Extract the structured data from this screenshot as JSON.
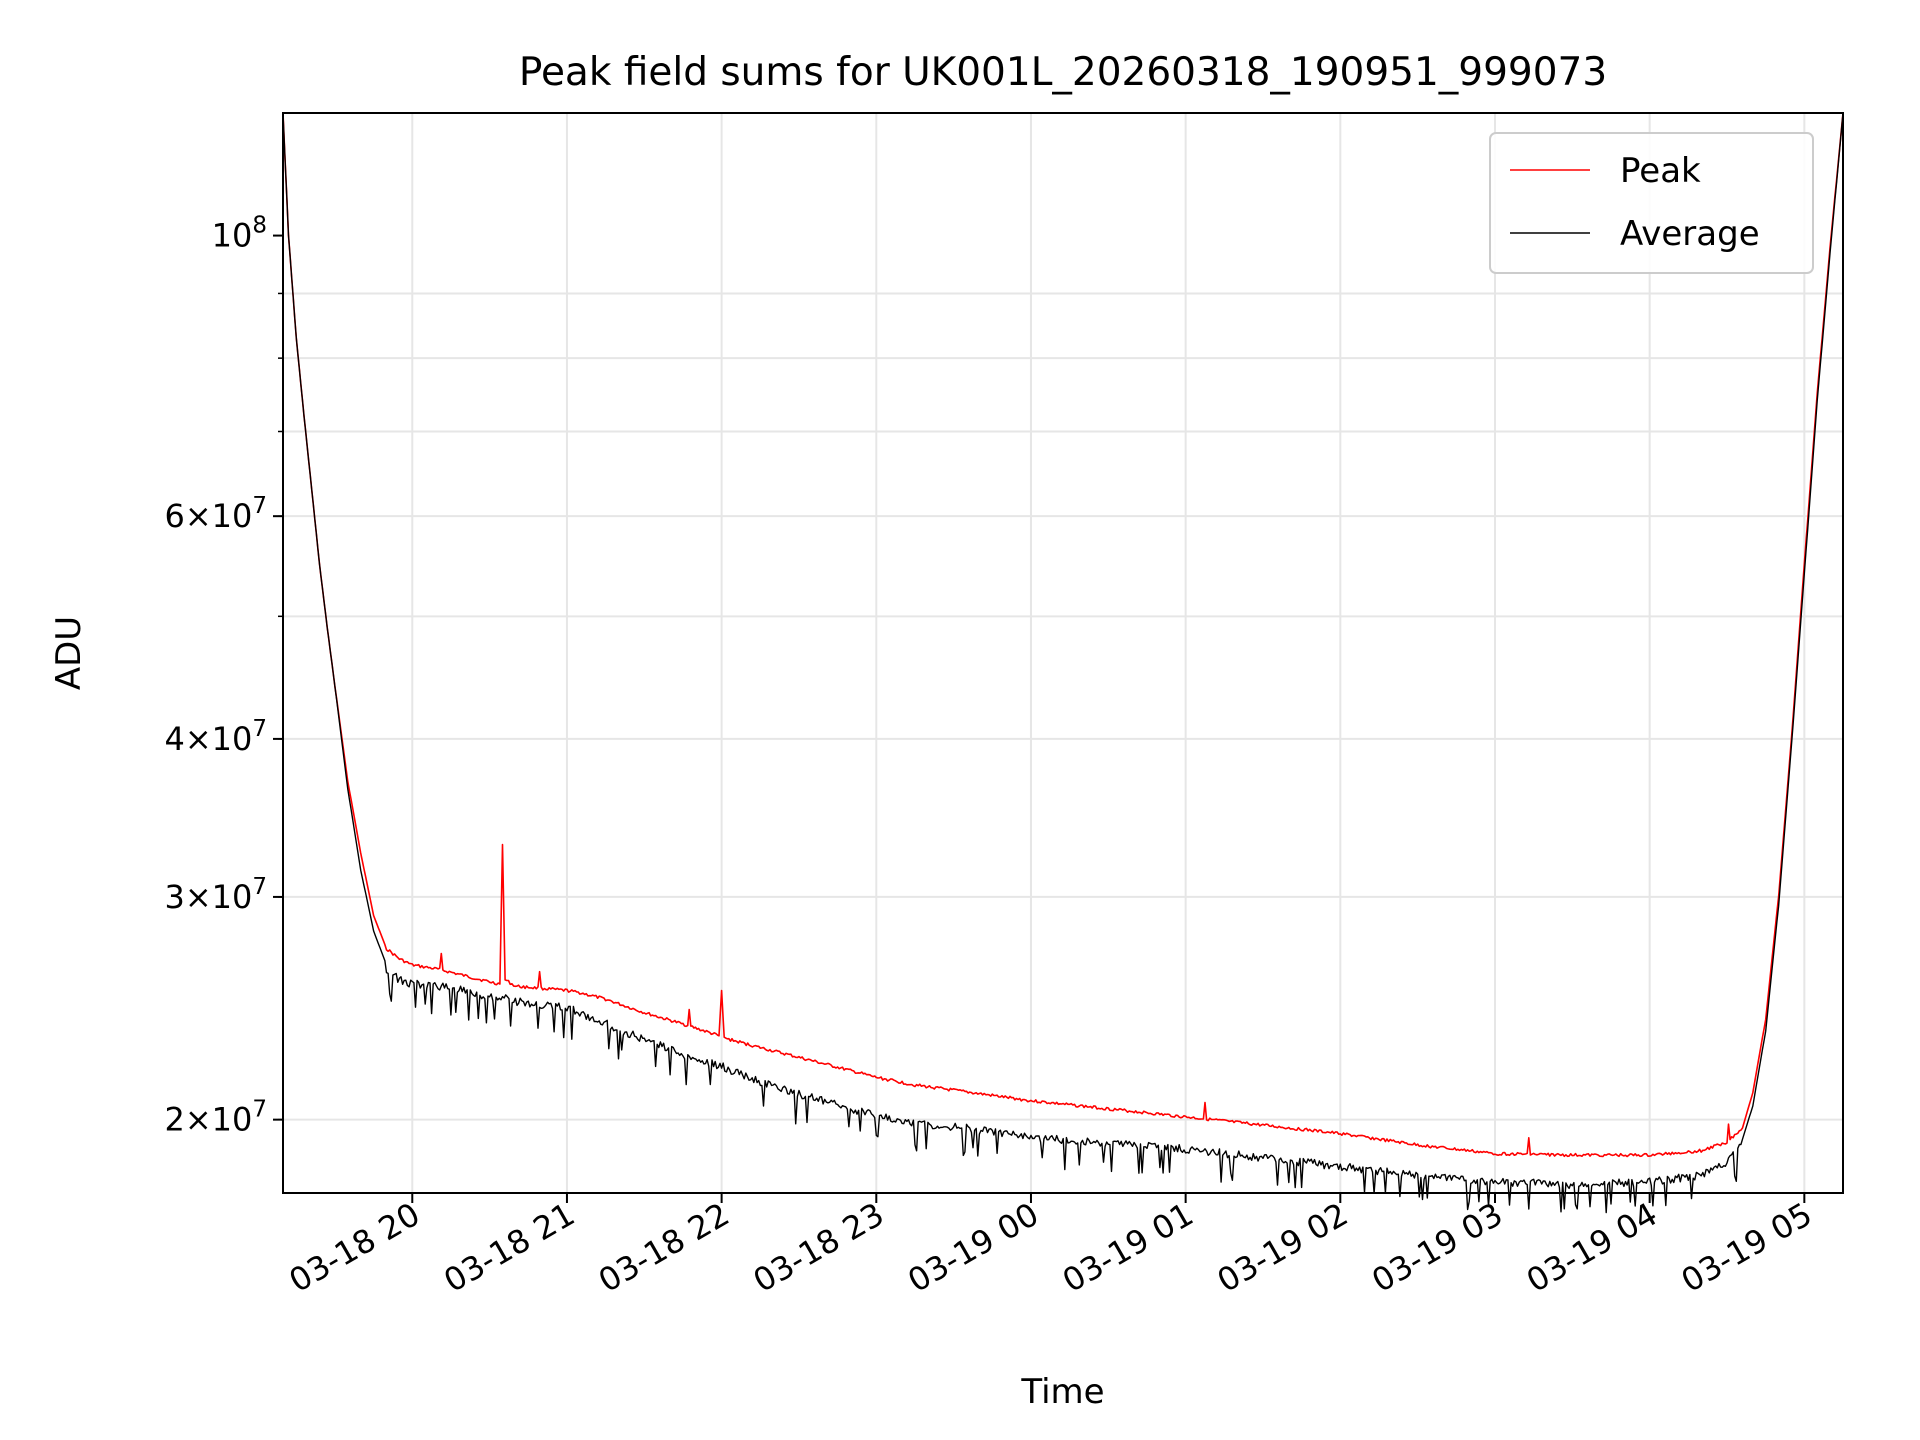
{
  "chart_data": {
    "type": "line",
    "title": "Peak field sums for UK001L_20260318_190951_999073",
    "xlabel": "Time",
    "ylabel": "ADU",
    "yscale": "log",
    "xlim": [
      "2026-03-18 19:09:51",
      "2026-03-19 05:15:00"
    ],
    "ylim": [
      17500000,
      125000000
    ],
    "grid": true,
    "legend_position": "top-right",
    "x_ticks": [
      {
        "value": "2026-03-18 20:00",
        "label": "03-18 20"
      },
      {
        "value": "2026-03-18 21:00",
        "label": "03-18 21"
      },
      {
        "value": "2026-03-18 22:00",
        "label": "03-18 22"
      },
      {
        "value": "2026-03-18 23:00",
        "label": "03-18 23"
      },
      {
        "value": "2026-03-19 00:00",
        "label": "03-19 00"
      },
      {
        "value": "2026-03-19 01:00",
        "label": "03-19 01"
      },
      {
        "value": "2026-03-19 02:00",
        "label": "03-19 02"
      },
      {
        "value": "2026-03-19 03:00",
        "label": "03-19 03"
      },
      {
        "value": "2026-03-19 04:00",
        "label": "03-19 04"
      },
      {
        "value": "2026-03-19 05:00",
        "label": "03-19 05"
      }
    ],
    "y_ticks": [
      {
        "value": 20000000,
        "mant": "2",
        "exp": "7"
      },
      {
        "value": 30000000,
        "mant": "3",
        "exp": "7"
      },
      {
        "value": 40000000,
        "mant": "4",
        "exp": "7"
      },
      {
        "value": 60000000,
        "mant": "6",
        "exp": "7"
      },
      {
        "value": 100000000,
        "mant": "",
        "exp": "8"
      }
    ],
    "series": [
      {
        "name": "Peak",
        "color": "#ff0000",
        "x": [
          "2026-03-18 19:09:51",
          "2026-03-18 19:12",
          "2026-03-18 19:15",
          "2026-03-18 19:18",
          "2026-03-18 19:21",
          "2026-03-18 19:24",
          "2026-03-18 19:27",
          "2026-03-18 19:30",
          "2026-03-18 19:35",
          "2026-03-18 19:40",
          "2026-03-18 19:45",
          "2026-03-18 19:50",
          "2026-03-18 19:55",
          "2026-03-18 20:00",
          "2026-03-18 20:10",
          "2026-03-18 20:20",
          "2026-03-18 20:30",
          "2026-03-18 20:34",
          "2026-03-18 20:35",
          "2026-03-18 20:36",
          "2026-03-18 20:40",
          "2026-03-18 20:50",
          "2026-03-18 21:00",
          "2026-03-18 21:05",
          "2026-03-18 21:15",
          "2026-03-18 21:30",
          "2026-03-18 21:45",
          "2026-03-18 21:59",
          "2026-03-18 22:00",
          "2026-03-18 22:01",
          "2026-03-18 22:15",
          "2026-03-18 22:30",
          "2026-03-18 22:45",
          "2026-03-18 23:00",
          "2026-03-18 23:15",
          "2026-03-18 23:30",
          "2026-03-18 23:45",
          "2026-03-19 00:00",
          "2026-03-19 00:30",
          "2026-03-19 01:00",
          "2026-03-19 01:30",
          "2026-03-19 02:00",
          "2026-03-19 02:30",
          "2026-03-19 03:00",
          "2026-03-19 03:30",
          "2026-03-19 04:00",
          "2026-03-19 04:20",
          "2026-03-19 04:30",
          "2026-03-19 04:36",
          "2026-03-19 04:40",
          "2026-03-19 04:45",
          "2026-03-19 04:50",
          "2026-03-19 04:55",
          "2026-03-19 05:00",
          "2026-03-19 05:05",
          "2026-03-19 05:10",
          "2026-03-19 05:15"
        ],
        "y": [
          125000000,
          100000000,
          83000000,
          72000000,
          63000000,
          55000000,
          49000000,
          44000000,
          37000000,
          32500000,
          29000000,
          27300000,
          26800000,
          26500000,
          26300000,
          26000000,
          25700000,
          25600000,
          33000000,
          25800000,
          25500000,
          25400000,
          25300000,
          25200000,
          24900000,
          24300000,
          23800000,
          23300000,
          25300000,
          23200000,
          22800000,
          22400000,
          22000000,
          21600000,
          21300000,
          21100000,
          20900000,
          20700000,
          20400000,
          20100000,
          19800000,
          19500000,
          19100000,
          18800000,
          18750000,
          18750000,
          18900000,
          19200000,
          19700000,
          21000000,
          24000000,
          30000000,
          40000000,
          55000000,
          75000000,
          98000000,
          125000000
        ]
      },
      {
        "name": "Average",
        "color": "#000000",
        "x": [
          "2026-03-18 19:09:51",
          "2026-03-18 19:12",
          "2026-03-18 19:15",
          "2026-03-18 19:18",
          "2026-03-18 19:21",
          "2026-03-18 19:24",
          "2026-03-18 19:27",
          "2026-03-18 19:30",
          "2026-03-18 19:35",
          "2026-03-18 19:40",
          "2026-03-18 19:45",
          "2026-03-18 19:50",
          "2026-03-18 19:55",
          "2026-03-18 20:00",
          "2026-03-18 20:10",
          "2026-03-18 20:20",
          "2026-03-18 20:30",
          "2026-03-18 20:35",
          "2026-03-18 20:40",
          "2026-03-18 20:50",
          "2026-03-18 21:00",
          "2026-03-18 21:15",
          "2026-03-18 21:30",
          "2026-03-18 21:45",
          "2026-03-18 22:00",
          "2026-03-18 22:15",
          "2026-03-18 22:30",
          "2026-03-18 22:45",
          "2026-03-18 23:00",
          "2026-03-18 23:15",
          "2026-03-18 23:30",
          "2026-03-18 23:45",
          "2026-03-19 00:00",
          "2026-03-19 00:30",
          "2026-03-19 01:00",
          "2026-03-19 01:30",
          "2026-03-19 02:00",
          "2026-03-19 02:30",
          "2026-03-19 03:00",
          "2026-03-19 03:30",
          "2026-03-19 04:00",
          "2026-03-19 04:20",
          "2026-03-19 04:30",
          "2026-03-19 04:36",
          "2026-03-19 04:40",
          "2026-03-19 04:45",
          "2026-03-19 04:50",
          "2026-03-19 04:55",
          "2026-03-19 05:00",
          "2026-03-19 05:05",
          "2026-03-19 05:10",
          "2026-03-19 05:15"
        ],
        "y": [
          125000000,
          100000000,
          83000000,
          72000000,
          63000000,
          55000000,
          49000000,
          44000000,
          36500000,
          31500000,
          28200000,
          26500000,
          26000000,
          25800000,
          25700000,
          25500000,
          25200000,
          25200000,
          25000000,
          24800000,
          24700000,
          24000000,
          23300000,
          22700000,
          22200000,
          21600000,
          21100000,
          20700000,
          20300000,
          20000000,
          19900000,
          19700000,
          19500000,
          19300000,
          19100000,
          18800000,
          18500000,
          18200000,
          18000000,
          17900000,
          18000000,
          18200000,
          18600000,
          19300000,
          20500000,
          23500000,
          29500000,
          39500000,
          54000000,
          74000000,
          97000000,
          125000000
        ]
      }
    ]
  }
}
